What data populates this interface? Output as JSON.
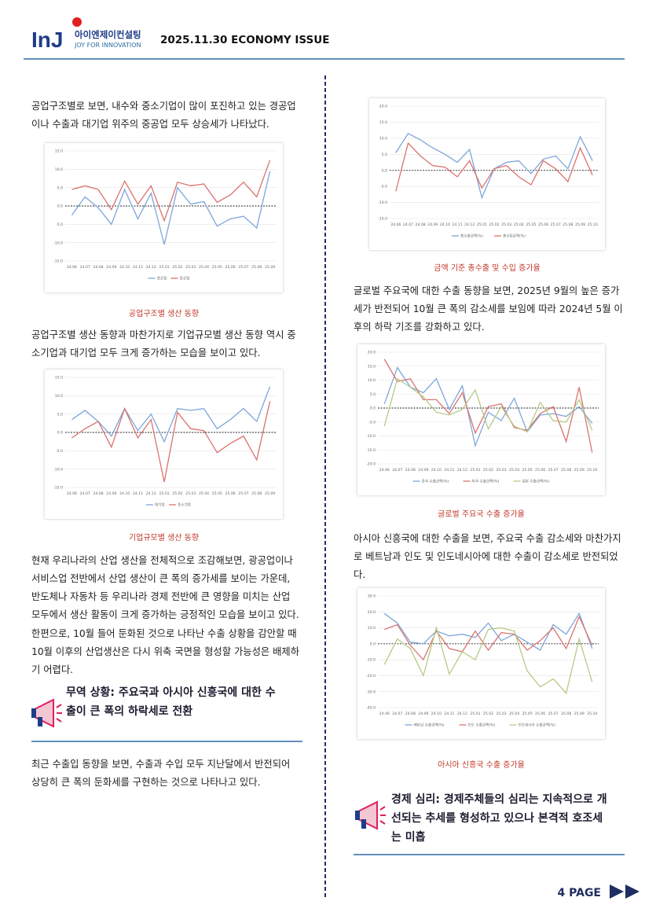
{
  "header": {
    "logo_mark": "InJ",
    "company": "아이엔제이컨설팅",
    "tagline": "JOY FOR INNOVATION",
    "issue": "2025.11.30 ECONOMY ISSUE"
  },
  "left": {
    "p1": [
      "공업구조별로 보면, 내수와 중소기업이 많이 포진하고 있는 경공업",
      "이나 수출과 대기업 위주의 중공업 모두 상승세가 나타났다."
    ],
    "p2": [
      "공업구조별 생산 동향과 마찬가지로 기업규모별 생산 동향 역시 중",
      "소기업과 대기업 모두 크게 증가하는 모습을 보이고 있다."
    ],
    "p3": [
      "현재 우리나라의 산업 생산을 전체적으로 조감해보면, 광공업이나",
      "서비스업 전반에서 산업 생산이 큰 폭의 증가세를 보이는 가운데,",
      "반도체나 자동차 등 우리나라 경제 전반에 큰 영향을 미치는 산업",
      "모두에서 생산 활동이 크게 증가하는 긍정적인 모습을 보이고 있다."
    ],
    "p4": [
      "한편으로, 10월 들어 둔화된 것으로 나타난 수출 상황을 감안할 때",
      "10월 이후의 산업생산은 다시 위축 국면을 형성할 가능성은 배제하",
      "기 어렵다."
    ],
    "heading": [
      "무역 상황: 주요국과 아시아 신흥국에 대한 수",
      "출이 큰 폭의 하락세로 전환"
    ],
    "p5": [
      "최근 수출입 동향을 보면, 수출과 수입 모두 지난달에서 반전되어",
      "상당히 큰 폭의 둔화세를 구현하는 것으로 나타나고 있다."
    ]
  },
  "right": {
    "p1": [
      "글로벌 주요국에 대한 수출 동향을 보면, 2025년 9월의 높은 증가",
      "세가 반전되어 10월 큰 폭의 감소세를 보임에 따라 2024년 5월 이",
      "후의 하락 기조를 강화하고 있다."
    ],
    "p2": [
      "아시아 신흥국에 대한 수출을 보면, 주요국 수출 감소세와 마찬가지",
      "로 베트남과 인도 및 인도네시아에 대한 수출이 감소세로 반전되었",
      "다."
    ],
    "heading": [
      "경제 심리: 경제주체들의 심리는 지속적으로 개",
      "선되는 추세를 형성하고 있으나 본격적 호조세",
      "는 미흡"
    ]
  },
  "footer": {
    "page": "4 PAGE"
  },
  "chart_data": [
    {
      "type": "line",
      "title": "공업구조별 생산 동향",
      "categories": [
        "24.06",
        "24.07",
        "24.08",
        "24.09",
        "24.10",
        "24.11",
        "24.12",
        "25.01",
        "25.02",
        "25.03",
        "25.04",
        "25.05",
        "25.06",
        "25.07",
        "25.08",
        "25.09"
      ],
      "series": [
        {
          "name": "경공업",
          "color": "#7ea6da",
          "values": [
            -2.5,
            2.5,
            -0.5,
            -5,
            4.5,
            -3.5,
            3.5,
            -10.5,
            5,
            0.5,
            1.2,
            -5.5,
            -3.5,
            -2.8,
            -6,
            9.5
          ]
        },
        {
          "name": "중공업",
          "color": "#d9736f",
          "values": [
            4.5,
            5.5,
            4.5,
            -1,
            6.8,
            0.5,
            5.5,
            -4,
            6.5,
            5.5,
            6,
            1,
            3,
            6.5,
            2.5,
            12.5
          ]
        }
      ],
      "ylim": [
        -15,
        15
      ],
      "yticks": [
        {
          "value": -15,
          "label": "-15.0"
        },
        {
          "value": -10,
          "label": "-10.0"
        },
        {
          "value": -5,
          "label": "-5.0"
        },
        {
          "value": 0,
          "label": "0.0"
        },
        {
          "value": 5,
          "label": "5.0"
        },
        {
          "value": 10,
          "label": "10.0"
        },
        {
          "value": 15,
          "label": "15.0"
        }
      ],
      "grid": true
    },
    {
      "type": "line",
      "title": "기업규모별 생산 동향",
      "categories": [
        "24.06",
        "24.07",
        "24.08",
        "24.09",
        "24.10",
        "24.11",
        "24.12",
        "25.01",
        "25.02",
        "25.03",
        "25.04",
        "25.05",
        "25.06",
        "25.07",
        "25.08",
        "25.09"
      ],
      "series": [
        {
          "name": "대기업",
          "color": "#7ea6da",
          "values": [
            3.5,
            6,
            3,
            -1,
            6.5,
            0.5,
            5,
            -2.5,
            6.5,
            6,
            6.5,
            1,
            3.5,
            6.5,
            3,
            12.5
          ]
        },
        {
          "name": "중소기업",
          "color": "#d9736f",
          "values": [
            -1.5,
            1,
            3,
            -4,
            6.5,
            -1.5,
            3.5,
            -13.5,
            5.5,
            1,
            0.5,
            -5.5,
            -3,
            -1,
            -7.5,
            8.5
          ]
        }
      ],
      "ylim": [
        -15,
        15
      ],
      "yticks": [
        {
          "value": -15,
          "label": "-15.0"
        },
        {
          "value": -10,
          "label": "-10.0"
        },
        {
          "value": -5,
          "label": "-5.0"
        },
        {
          "value": 0,
          "label": "0.0"
        },
        {
          "value": 5,
          "label": "5.0"
        },
        {
          "value": 10,
          "label": "10.0"
        },
        {
          "value": 15,
          "label": "15.0"
        }
      ],
      "grid": true
    },
    {
      "type": "line",
      "title": "금액 기준 총수출 및 수입 증가율",
      "categories": [
        "24.06",
        "24.07",
        "24.08",
        "24.09",
        "24.10",
        "24.11",
        "24.12",
        "25.01",
        "25.02",
        "25.03",
        "25.04",
        "25.05",
        "25.06",
        "25.07",
        "25.08",
        "25.09",
        "25.10"
      ],
      "series": [
        {
          "name": "총수출금액(%)",
          "color": "#7ea6da",
          "values": [
            5.5,
            11.5,
            9.5,
            7,
            5,
            2.5,
            6.5,
            -8.5,
            0.5,
            2.5,
            3,
            -1,
            3.5,
            4.5,
            0.5,
            10.5,
            3
          ]
        },
        {
          "name": "총수입금액(%)",
          "color": "#d9736f",
          "values": [
            -6.5,
            8.5,
            4.5,
            1.5,
            1,
            -2,
            3,
            -5.5,
            0.5,
            1.5,
            -2,
            -4.5,
            3,
            0.5,
            -3.5,
            7,
            -1.5
          ]
        }
      ],
      "ylim": [
        -15,
        20
      ],
      "yticks": [
        {
          "value": -15,
          "label": "-15.0"
        },
        {
          "value": -10,
          "label": "-10.0"
        },
        {
          "value": -5,
          "label": "-5.0"
        },
        {
          "value": 0,
          "label": "0.0"
        },
        {
          "value": 5,
          "label": "5.0"
        },
        {
          "value": 10,
          "label": "10.0"
        },
        {
          "value": 15,
          "label": "15.0"
        },
        {
          "value": 20,
          "label": "20.0"
        }
      ],
      "grid": true
    },
    {
      "type": "line",
      "title": "글로벌 주요국 수출 증가율",
      "categories": [
        "24.06",
        "24.07",
        "24.08",
        "24.09",
        "24.10",
        "24.11",
        "24.12",
        "25.01",
        "25.02",
        "25.03",
        "25.04",
        "25.05",
        "25.06",
        "25.07",
        "25.08",
        "25.09",
        "25.10"
      ],
      "series": [
        {
          "name": "중국 수출금액(%)",
          "color": "#7ea6da",
          "values": [
            1.5,
            14.5,
            7.5,
            5.5,
            10.5,
            -0.5,
            8,
            -13.5,
            -1.5,
            -4.5,
            3.5,
            -8.5,
            -2.5,
            -2,
            -3,
            0.5,
            -5.5
          ]
        },
        {
          "name": "미국 수출금액(%)",
          "color": "#d9736f",
          "values": [
            17.5,
            9.5,
            10.5,
            3,
            3,
            -2,
            5.5,
            -9,
            0.5,
            1.5,
            -7,
            -8,
            -2,
            0.5,
            -12,
            7.5,
            -16
          ]
        },
        {
          "name": "일본 수출금액(%)",
          "color": "#b5cb86",
          "values": [
            -6.5,
            10.5,
            7.5,
            4,
            -1.5,
            -2.5,
            -0.5,
            6.5,
            -7.5,
            0.5,
            -6.5,
            -8.5,
            2,
            -4.5,
            -5,
            3,
            -8
          ]
        }
      ],
      "ylim": [
        -20,
        20
      ],
      "yticks": [
        {
          "value": -20,
          "label": "-20.0"
        },
        {
          "value": -15,
          "label": "-15.0"
        },
        {
          "value": -10,
          "label": "-10.0"
        },
        {
          "value": -5,
          "label": "-5.0"
        },
        {
          "value": 0,
          "label": "0.0"
        },
        {
          "value": 5,
          "label": "5.0"
        },
        {
          "value": 10,
          "label": "10.0"
        },
        {
          "value": 15,
          "label": "15.0"
        },
        {
          "value": 20,
          "label": "20.0"
        }
      ],
      "grid": true
    },
    {
      "type": "line",
      "title": "아시아 신흥국 수출 증가율",
      "categories": [
        "24.06",
        "24.07",
        "24.08",
        "24.09",
        "24.10",
        "24.11",
        "24.12",
        "25.01",
        "25.02",
        "25.03",
        "25.04",
        "25.05",
        "25.06",
        "25.07",
        "25.08",
        "25.09",
        "25.10"
      ],
      "series": [
        {
          "name": "베트남 수출금액(%)",
          "color": "#7ea6da",
          "values": [
            19,
            13,
            1,
            0,
            8,
            5,
            6,
            4,
            13,
            2,
            6,
            1,
            -4,
            12,
            6,
            19,
            -3
          ]
        },
        {
          "name": "인도 수출금액(%)",
          "color": "#d9736f",
          "values": [
            9,
            12,
            -1,
            -10,
            8,
            -3,
            -5,
            8,
            -4,
            7,
            6,
            -4,
            2,
            10,
            -3,
            17,
            -1
          ]
        },
        {
          "name": "인도네시아 수출금액(%)",
          "color": "#b5cb86",
          "values": [
            -13,
            3,
            -3,
            -20,
            10,
            -19,
            -5,
            -10,
            9,
            10,
            8,
            -17,
            -27,
            -22,
            -31,
            3,
            -24
          ]
        }
      ],
      "ylim": [
        -40,
        30
      ],
      "yticks": [
        {
          "value": -40,
          "label": "-40.0"
        },
        {
          "value": -30,
          "label": "-30.0"
        },
        {
          "value": -20,
          "label": "-20.0"
        },
        {
          "value": -10,
          "label": "-10.0"
        },
        {
          "value": 0,
          "label": "0.0"
        },
        {
          "value": 10,
          "label": "10.0"
        },
        {
          "value": 20,
          "label": "20.0"
        },
        {
          "value": 30,
          "label": "30.0"
        }
      ],
      "grid": true
    }
  ]
}
